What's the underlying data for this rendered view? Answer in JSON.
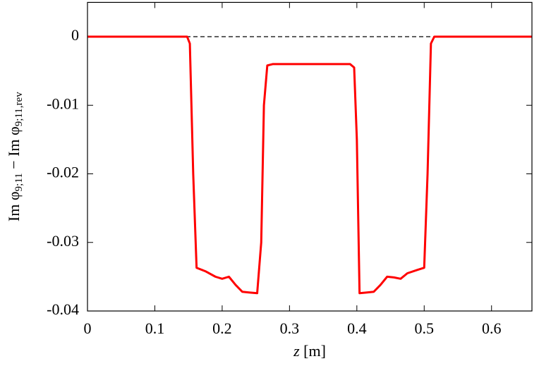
{
  "chart_data": {
    "type": "line",
    "xlabel": [
      "z",
      " [m]"
    ],
    "ylabel": [
      "Im φ",
      "9;11",
      " − Im φ",
      "9;11,rev"
    ],
    "x": [
      0,
      0.148,
      0.152,
      0.157,
      0.162,
      0.175,
      0.19,
      0.2,
      0.21,
      0.22,
      0.23,
      0.24,
      0.252,
      0.258,
      0.262,
      0.267,
      0.275,
      0.39,
      0.396,
      0.4,
      0.404,
      0.415,
      0.425,
      0.435,
      0.445,
      0.455,
      0.465,
      0.475,
      0.49,
      0.5,
      0.505,
      0.51,
      0.515,
      0.66
    ],
    "series": [
      {
        "color": "#ff0000",
        "values": [
          0,
          0,
          -0.001,
          -0.02,
          -0.0337,
          -0.0342,
          -0.035,
          -0.0353,
          -0.035,
          -0.0362,
          -0.0372,
          -0.0373,
          -0.0374,
          -0.03,
          -0.01,
          -0.0042,
          -0.004,
          -0.004,
          -0.0045,
          -0.015,
          -0.0374,
          -0.0373,
          -0.0372,
          -0.0362,
          -0.035,
          -0.0351,
          -0.0353,
          -0.0345,
          -0.034,
          -0.0337,
          -0.02,
          -0.001,
          0,
          0
        ]
      }
    ],
    "xlim": [
      0,
      0.66
    ],
    "xticks": [
      0,
      0.1,
      0.2,
      0.3,
      0.4,
      0.5,
      0.6
    ],
    "ylim": [
      -0.04,
      0.005
    ],
    "yticks": [
      0,
      -0.01,
      -0.02,
      -0.03,
      -0.04
    ],
    "reference_line": {
      "y": 0,
      "style": "dashed"
    }
  }
}
